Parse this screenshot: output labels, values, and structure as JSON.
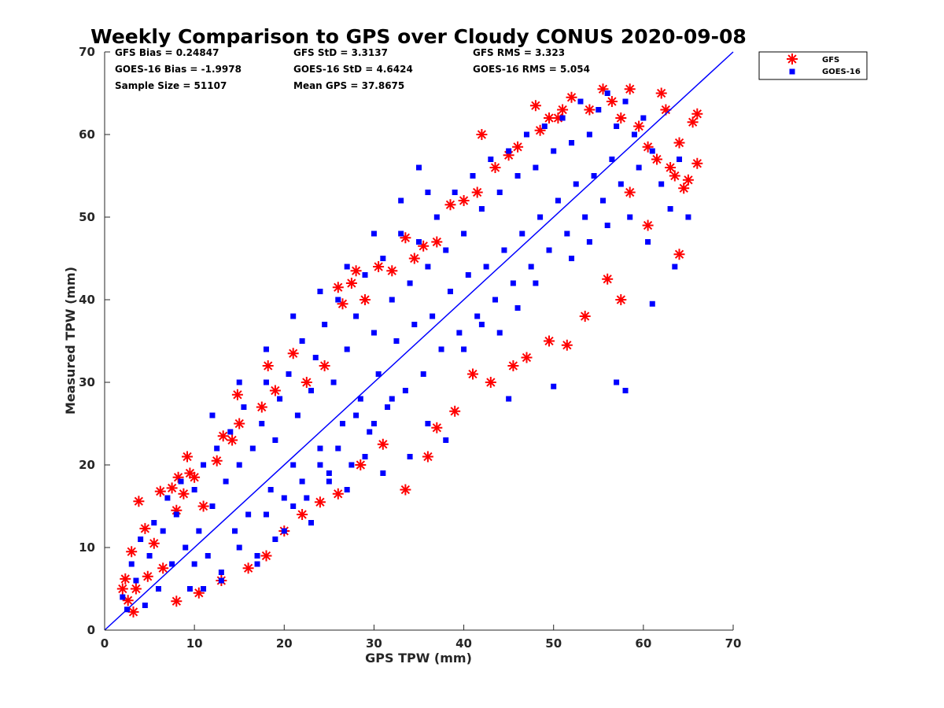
{
  "chart_data": {
    "type": "scatter",
    "title": "Weekly Comparison to GPS over Cloudy CONUS 2020-09-08",
    "xlabel": "GPS TPW (mm)",
    "ylabel": "Measured TPW (mm)",
    "xlim": [
      0,
      70
    ],
    "ylim": [
      0,
      70
    ],
    "xticks": [
      "0",
      "10",
      "20",
      "30",
      "40",
      "50",
      "60",
      "70"
    ],
    "yticks": [
      "0",
      "10",
      "20",
      "30",
      "40",
      "50",
      "60",
      "70"
    ],
    "grid": false,
    "legend_position": "outside top-right",
    "colors": {
      "gfs": "#ff0000",
      "goes16": "#0000ff",
      "one_to_one_line": "#0000ff",
      "axes": "#262626"
    },
    "stats": [
      {
        "text": "GFS Bias = 0.24847"
      },
      {
        "text": "GFS StD = 3.3137"
      },
      {
        "text": "GFS RMS = 3.323"
      },
      {
        "text": "GOES-16 Bias = -1.9978"
      },
      {
        "text": "GOES-16 StD = 4.6424"
      },
      {
        "text": "GOES-16 RMS = 5.054"
      },
      {
        "text": "Sample Size = 51107"
      },
      {
        "text": "Mean GPS = 37.8675"
      }
    ],
    "reference_line": {
      "from": [
        0,
        0
      ],
      "to": [
        70,
        70
      ]
    },
    "series": [
      {
        "name": "GFS",
        "marker": "asterisk",
        "points": [
          [
            2,
            5
          ],
          [
            2.3,
            6.2
          ],
          [
            2.6,
            3.6
          ],
          [
            3,
            9.5
          ],
          [
            3.2,
            2.2
          ],
          [
            3.5,
            5
          ],
          [
            3.8,
            15.6
          ],
          [
            4.5,
            12.3
          ],
          [
            4.8,
            6.5
          ],
          [
            5.5,
            10.5
          ],
          [
            6.2,
            16.8
          ],
          [
            6.5,
            7.5
          ],
          [
            7.5,
            17.2
          ],
          [
            8,
            14.5
          ],
          [
            8.2,
            18.5
          ],
          [
            8.8,
            16.5
          ],
          [
            9.2,
            21
          ],
          [
            9.5,
            19
          ],
          [
            10,
            18.5
          ],
          [
            11,
            15
          ],
          [
            12.5,
            20.5
          ],
          [
            13.2,
            23.5
          ],
          [
            14.2,
            23
          ],
          [
            14.8,
            28.5
          ],
          [
            15,
            25
          ],
          [
            17.5,
            27
          ],
          [
            18.2,
            32
          ],
          [
            19,
            29
          ],
          [
            21,
            33.5
          ],
          [
            22.5,
            30
          ],
          [
            24.5,
            32
          ],
          [
            26,
            41.5
          ],
          [
            26.5,
            39.5
          ],
          [
            27.5,
            42
          ],
          [
            28,
            43.5
          ],
          [
            29,
            40
          ],
          [
            30.5,
            44
          ],
          [
            32,
            43.5
          ],
          [
            33.5,
            47.5
          ],
          [
            34.5,
            45
          ],
          [
            35.5,
            46.5
          ],
          [
            37,
            47
          ],
          [
            38.5,
            51.5
          ],
          [
            40,
            52
          ],
          [
            41.5,
            53
          ],
          [
            42,
            60
          ],
          [
            43.5,
            56
          ],
          [
            45,
            57.5
          ],
          [
            46,
            58.5
          ],
          [
            48,
            63.5
          ],
          [
            48.5,
            60.5
          ],
          [
            49.5,
            62
          ],
          [
            50.5,
            62
          ],
          [
            51,
            63
          ],
          [
            52,
            64.5
          ],
          [
            54,
            63
          ],
          [
            55.5,
            65.5
          ],
          [
            56.5,
            64
          ],
          [
            57.5,
            62
          ],
          [
            58.5,
            65.5
          ],
          [
            59.5,
            61
          ],
          [
            60.5,
            58.5
          ],
          [
            61.5,
            57
          ],
          [
            62,
            65
          ],
          [
            62.5,
            63
          ],
          [
            63,
            56
          ],
          [
            63.5,
            55
          ],
          [
            64,
            45.5
          ],
          [
            64,
            59
          ],
          [
            64.5,
            53.5
          ],
          [
            65,
            54.5
          ],
          [
            65.5,
            61.5
          ],
          [
            66,
            62.5
          ],
          [
            66,
            56.5
          ],
          [
            60.5,
            49
          ],
          [
            58.5,
            53
          ],
          [
            57.5,
            40
          ],
          [
            56,
            42.5
          ],
          [
            53.5,
            38
          ],
          [
            51.5,
            34.5
          ],
          [
            49.5,
            35
          ],
          [
            47,
            33
          ],
          [
            45.5,
            32
          ],
          [
            43,
            30
          ],
          [
            41,
            31
          ],
          [
            39,
            26.5
          ],
          [
            37,
            24.5
          ],
          [
            33.5,
            17
          ],
          [
            36,
            21
          ],
          [
            31,
            22.5
          ],
          [
            28.5,
            20
          ],
          [
            26,
            16.5
          ],
          [
            24,
            15.5
          ],
          [
            22,
            14
          ],
          [
            20,
            12
          ],
          [
            18,
            9
          ],
          [
            16,
            7.5
          ],
          [
            13,
            6
          ],
          [
            10.5,
            4.5
          ],
          [
            8,
            3.5
          ]
        ]
      },
      {
        "name": "GOES-16",
        "marker": "square",
        "points": [
          [
            2,
            4
          ],
          [
            2.5,
            2.5
          ],
          [
            3,
            8
          ],
          [
            3.5,
            6
          ],
          [
            4,
            11
          ],
          [
            4.5,
            3
          ],
          [
            5,
            9
          ],
          [
            5.5,
            13
          ],
          [
            6,
            5
          ],
          [
            6.5,
            12
          ],
          [
            7,
            16
          ],
          [
            7.5,
            8
          ],
          [
            8,
            14
          ],
          [
            8.5,
            18
          ],
          [
            9,
            10
          ],
          [
            9.5,
            5
          ],
          [
            10,
            17
          ],
          [
            10.5,
            12
          ],
          [
            11,
            20
          ],
          [
            11.5,
            9
          ],
          [
            12,
            15
          ],
          [
            12.5,
            22
          ],
          [
            13,
            7
          ],
          [
            13.5,
            18
          ],
          [
            14,
            24
          ],
          [
            14.5,
            12
          ],
          [
            15,
            20
          ],
          [
            15.5,
            27
          ],
          [
            16,
            14
          ],
          [
            16.5,
            22
          ],
          [
            17,
            9
          ],
          [
            17.5,
            25
          ],
          [
            18,
            30
          ],
          [
            18.5,
            17
          ],
          [
            19,
            23
          ],
          [
            19.5,
            28
          ],
          [
            20,
            12
          ],
          [
            20.5,
            31
          ],
          [
            21,
            20
          ],
          [
            21.5,
            26
          ],
          [
            22,
            35
          ],
          [
            22.5,
            16
          ],
          [
            23,
            29
          ],
          [
            23.5,
            33
          ],
          [
            24,
            22
          ],
          [
            24.5,
            37
          ],
          [
            25,
            18
          ],
          [
            25.5,
            30
          ],
          [
            26,
            40
          ],
          [
            26.5,
            25
          ],
          [
            27,
            34
          ],
          [
            27.5,
            20
          ],
          [
            28,
            38
          ],
          [
            28.5,
            28
          ],
          [
            29,
            43
          ],
          [
            29.5,
            24
          ],
          [
            30,
            36
          ],
          [
            30.5,
            31
          ],
          [
            31,
            45
          ],
          [
            31.5,
            27
          ],
          [
            32,
            40
          ],
          [
            32.5,
            35
          ],
          [
            33,
            48
          ],
          [
            33.5,
            29
          ],
          [
            34,
            42
          ],
          [
            34.5,
            37
          ],
          [
            35,
            47
          ],
          [
            35.5,
            31
          ],
          [
            36,
            44
          ],
          [
            36.5,
            38
          ],
          [
            37,
            50
          ],
          [
            37.5,
            34
          ],
          [
            38,
            46
          ],
          [
            38.5,
            41
          ],
          [
            39,
            53
          ],
          [
            39.5,
            36
          ],
          [
            40,
            48
          ],
          [
            40.5,
            43
          ],
          [
            41,
            55
          ],
          [
            41.5,
            38
          ],
          [
            42,
            51
          ],
          [
            42.5,
            44
          ],
          [
            43,
            57
          ],
          [
            43.5,
            40
          ],
          [
            44,
            53
          ],
          [
            44.5,
            46
          ],
          [
            45,
            58
          ],
          [
            45.5,
            42
          ],
          [
            46,
            55
          ],
          [
            46.5,
            48
          ],
          [
            47,
            60
          ],
          [
            47.5,
            44
          ],
          [
            48,
            56
          ],
          [
            48.5,
            50
          ],
          [
            49,
            61
          ],
          [
            49.5,
            46
          ],
          [
            50,
            58
          ],
          [
            50.5,
            52
          ],
          [
            51,
            62
          ],
          [
            51.5,
            48
          ],
          [
            52,
            59
          ],
          [
            52.5,
            54
          ],
          [
            53,
            64
          ],
          [
            53.5,
            50
          ],
          [
            54,
            60
          ],
          [
            54.5,
            55
          ],
          [
            55,
            63
          ],
          [
            55.5,
            52
          ],
          [
            56,
            65
          ],
          [
            56.5,
            57
          ],
          [
            57,
            61
          ],
          [
            57.5,
            54
          ],
          [
            58,
            64
          ],
          [
            58.5,
            50
          ],
          [
            59,
            60
          ],
          [
            59.5,
            56
          ],
          [
            60,
            62
          ],
          [
            60.5,
            47
          ],
          [
            61,
            58
          ],
          [
            62,
            54
          ],
          [
            63,
            51
          ],
          [
            64,
            57
          ],
          [
            65,
            50
          ],
          [
            57,
            30
          ],
          [
            58,
            29
          ],
          [
            63.5,
            44
          ],
          [
            61,
            39.5
          ],
          [
            50,
            29.5
          ],
          [
            45,
            28
          ],
          [
            38,
            23
          ],
          [
            36,
            25
          ],
          [
            34,
            21
          ],
          [
            31,
            19
          ],
          [
            29,
            21
          ],
          [
            27,
            17
          ],
          [
            25,
            19
          ],
          [
            23,
            13
          ],
          [
            21,
            15
          ],
          [
            19,
            11
          ],
          [
            17,
            8
          ],
          [
            15,
            10
          ],
          [
            13,
            6
          ],
          [
            11,
            5
          ],
          [
            10,
            8
          ],
          [
            40,
            34
          ],
          [
            42,
            37
          ],
          [
            44,
            36
          ],
          [
            46,
            39
          ],
          [
            48,
            42
          ],
          [
            52,
            45
          ],
          [
            54,
            47
          ],
          [
            56,
            49
          ],
          [
            30,
            25
          ],
          [
            32,
            28
          ],
          [
            28,
            26
          ],
          [
            26,
            22
          ],
          [
            24,
            20
          ],
          [
            22,
            18
          ],
          [
            20,
            16
          ],
          [
            18,
            14
          ],
          [
            35,
            56
          ],
          [
            36,
            53
          ],
          [
            33,
            52
          ],
          [
            30,
            48
          ],
          [
            27,
            44
          ],
          [
            24,
            41
          ],
          [
            21,
            38
          ],
          [
            18,
            34
          ],
          [
            15,
            30
          ],
          [
            12,
            26
          ]
        ]
      }
    ]
  }
}
